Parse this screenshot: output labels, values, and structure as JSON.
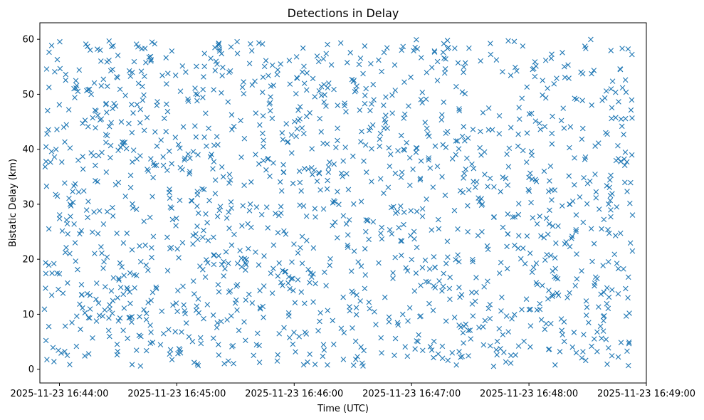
{
  "chart_data": {
    "type": "scatter",
    "title": "Detections in Delay",
    "xlabel": "Time (UTC)",
    "ylabel": "Bistatic Delay (km)",
    "marker": "x",
    "color": "#1f77b4",
    "grid": false,
    "xlim": [
      "2025-11-23 16:43:50",
      "2025-11-23 16:49:00"
    ],
    "ylim": [
      -2.5,
      63
    ],
    "x_ticks": [
      "2025-11-23 16:44:00",
      "2025-11-23 16:45:00",
      "2025-11-23 16:46:00",
      "2025-11-23 16:47:00",
      "2025-11-23 16:48:00",
      "2025-11-23 16:49:00"
    ],
    "y_ticks": [
      0,
      10,
      20,
      30,
      40,
      50,
      60
    ],
    "point_count": 1500,
    "x_range": [
      "2025-11-23 16:43:52",
      "2025-11-23 16:48:53"
    ],
    "y_range": [
      0.5,
      60
    ],
    "distribution": "approximately uniform over both ranges"
  }
}
